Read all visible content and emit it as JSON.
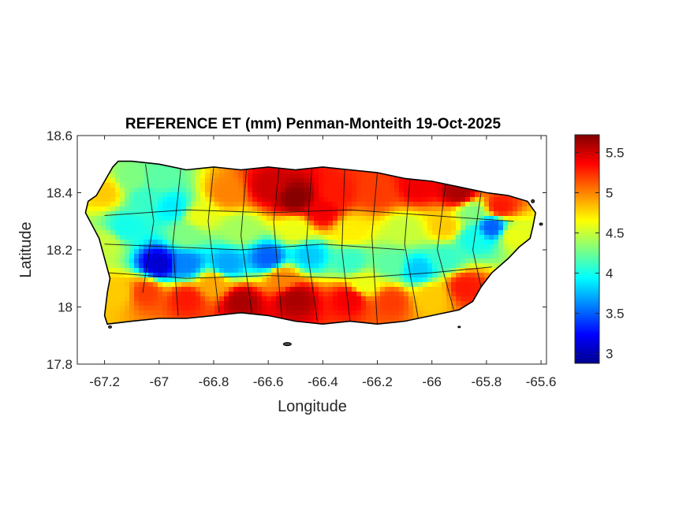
{
  "chart_data": {
    "type": "heatmap",
    "title": "REFERENCE ET (mm) Penman-Monteith 19-Oct-2025",
    "xlabel": "Longitude",
    "ylabel": "Latitude",
    "xlim": [
      -67.3,
      -65.58
    ],
    "ylim": [
      17.8,
      18.6
    ],
    "x_ticks": [
      -67.2,
      -67,
      -66.8,
      -66.6,
      -66.4,
      -66.2,
      -66,
      -65.8,
      -65.6
    ],
    "x_tick_labels": [
      "-67.2",
      "-67",
      "-66.8",
      "-66.6",
      "-66.4",
      "-66.2",
      "-66",
      "-65.8",
      "-65.6"
    ],
    "y_ticks": [
      17.8,
      18,
      18.2,
      18.4,
      18.6
    ],
    "y_tick_labels": [
      "17.8",
      "18",
      "18.2",
      "18.4",
      "18.6"
    ],
    "colorbar": {
      "colormap": "jet",
      "range": [
        2.88,
        5.72
      ],
      "ticks": [
        3,
        3.5,
        4,
        4.5,
        5,
        5.5
      ],
      "tick_labels": [
        "3",
        "3.5",
        "4",
        "4.5",
        "5",
        "5.5"
      ]
    },
    "grid": false,
    "island_outline": [
      [
        -67.26,
        18.37
      ],
      [
        -67.23,
        18.39
      ],
      [
        -67.2,
        18.44
      ],
      [
        -67.17,
        18.49
      ],
      [
        -67.15,
        18.51
      ],
      [
        -67.1,
        18.51
      ],
      [
        -67.0,
        18.5
      ],
      [
        -66.9,
        18.48
      ],
      [
        -66.8,
        18.49
      ],
      [
        -66.7,
        18.48
      ],
      [
        -66.6,
        18.49
      ],
      [
        -66.5,
        18.48
      ],
      [
        -66.4,
        18.49
      ],
      [
        -66.3,
        18.48
      ],
      [
        -66.2,
        18.47
      ],
      [
        -66.1,
        18.45
      ],
      [
        -66.0,
        18.44
      ],
      [
        -65.9,
        18.42
      ],
      [
        -65.8,
        18.4
      ],
      [
        -65.72,
        18.39
      ],
      [
        -65.65,
        18.37
      ],
      [
        -65.62,
        18.33
      ],
      [
        -65.63,
        18.28
      ],
      [
        -65.64,
        18.24
      ],
      [
        -65.68,
        18.21
      ],
      [
        -65.72,
        18.17
      ],
      [
        -65.78,
        18.12
      ],
      [
        -65.82,
        18.07
      ],
      [
        -65.85,
        18.02
      ],
      [
        -65.9,
        17.99
      ],
      [
        -66.0,
        17.97
      ],
      [
        -66.1,
        17.95
      ],
      [
        -66.2,
        17.94
      ],
      [
        -66.3,
        17.95
      ],
      [
        -66.4,
        17.94
      ],
      [
        -66.5,
        17.95
      ],
      [
        -66.6,
        17.97
      ],
      [
        -66.7,
        17.98
      ],
      [
        -66.8,
        17.97
      ],
      [
        -66.9,
        17.96
      ],
      [
        -67.0,
        17.96
      ],
      [
        -67.1,
        17.95
      ],
      [
        -67.19,
        17.94
      ],
      [
        -67.2,
        17.97
      ],
      [
        -67.19,
        18.05
      ],
      [
        -67.18,
        18.1
      ],
      [
        -67.2,
        18.17
      ],
      [
        -67.22,
        18.24
      ],
      [
        -67.27,
        18.33
      ]
    ],
    "et_field": [
      [
        -67.2,
        18.4,
        4.8
      ],
      [
        -67.1,
        18.45,
        4.3
      ],
      [
        -67.0,
        18.45,
        4.2
      ],
      [
        -66.95,
        18.35,
        3.9
      ],
      [
        -67.12,
        18.28,
        4.0
      ],
      [
        -67.2,
        18.22,
        4.5
      ],
      [
        -67.15,
        18.05,
        4.8
      ],
      [
        -67.0,
        18.15,
        3.1
      ],
      [
        -66.9,
        18.15,
        3.6
      ],
      [
        -66.75,
        18.15,
        3.7
      ],
      [
        -66.6,
        18.17,
        3.5
      ],
      [
        -66.45,
        18.18,
        3.8
      ],
      [
        -66.3,
        18.16,
        4.1
      ],
      [
        -66.15,
        18.15,
        4.2
      ],
      [
        -66.05,
        18.13,
        3.8
      ],
      [
        -65.95,
        18.17,
        4.1
      ],
      [
        -65.85,
        18.24,
        4.0
      ],
      [
        -65.78,
        18.28,
        3.5
      ],
      [
        -65.7,
        18.25,
        4.6
      ],
      [
        -65.75,
        18.35,
        5.3
      ],
      [
        -65.9,
        18.4,
        5.6
      ],
      [
        -66.05,
        18.42,
        5.4
      ],
      [
        -66.2,
        18.4,
        5.2
      ],
      [
        -66.35,
        18.4,
        5.3
      ],
      [
        -66.5,
        18.38,
        5.7
      ],
      [
        -66.6,
        18.42,
        5.5
      ],
      [
        -66.75,
        18.4,
        5.0
      ],
      [
        -66.85,
        18.32,
        4.6
      ],
      [
        -66.7,
        18.27,
        4.4
      ],
      [
        -66.5,
        18.27,
        4.6
      ],
      [
        -66.3,
        18.27,
        4.7
      ],
      [
        -66.1,
        18.27,
        4.5
      ],
      [
        -65.95,
        18.28,
        4.8
      ],
      [
        -66.9,
        18.25,
        4.3
      ],
      [
        -67.05,
        18.05,
        5.2
      ],
      [
        -66.9,
        18.03,
        5.3
      ],
      [
        -66.7,
        18.02,
        5.6
      ],
      [
        -66.5,
        18.03,
        5.6
      ],
      [
        -66.3,
        18.03,
        5.4
      ],
      [
        -66.15,
        18.02,
        5.2
      ],
      [
        -66.0,
        18.04,
        4.8
      ],
      [
        -65.88,
        18.07,
        5.3
      ],
      [
        -66.55,
        18.1,
        5.0
      ],
      [
        -66.25,
        18.08,
        4.6
      ],
      [
        -66.8,
        18.08,
        4.9
      ],
      [
        -67.05,
        18.38,
        4.1
      ],
      [
        -66.4,
        18.33,
        5.4
      ],
      [
        -65.85,
        18.33,
        4.3
      ]
    ]
  }
}
